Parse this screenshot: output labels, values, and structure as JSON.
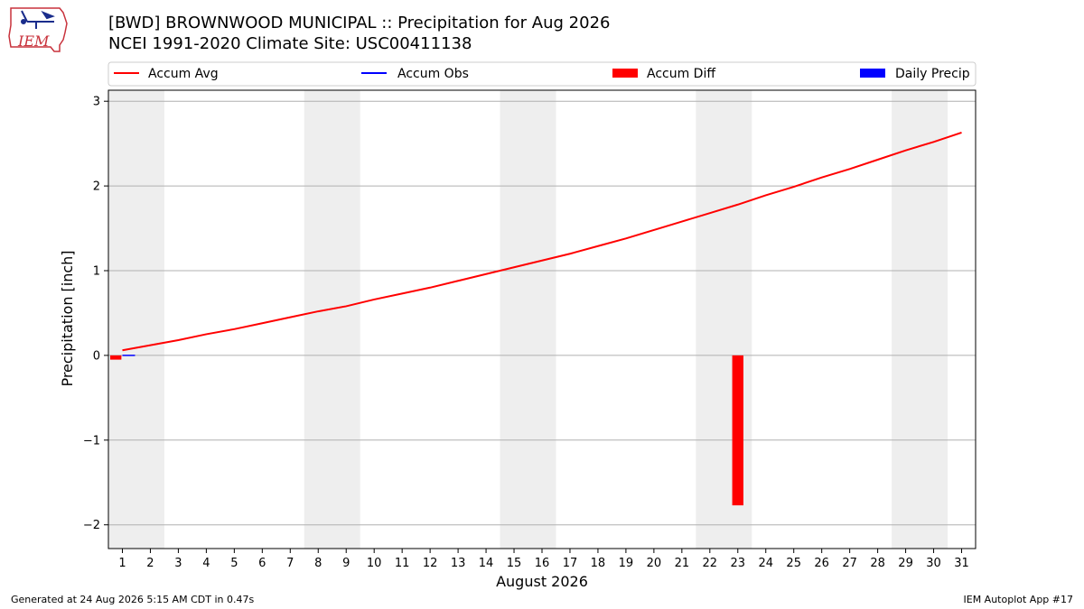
{
  "header": {
    "title_line1": "[BWD] BROWNWOOD MUNICIPAL :: Precipitation for Aug 2026",
    "title_line2": "NCEI 1991-2020 Climate Site: USC00411138"
  },
  "logo": {
    "text": "IEM"
  },
  "legend": {
    "placement": "top",
    "items": [
      {
        "label": "Accum Avg",
        "kind": "line",
        "color": "#ff0000"
      },
      {
        "label": "Accum Obs",
        "kind": "line",
        "color": "#0000ff"
      },
      {
        "label": "Accum Diff",
        "kind": "bar",
        "color": "#ff0000"
      },
      {
        "label": "Daily Precip",
        "kind": "bar",
        "color": "#0000ff"
      }
    ]
  },
  "footer": {
    "left": "Generated at 24 Aug 2026 5:15 AM CDT in 0.47s",
    "right": "IEM Autoplot App #17"
  },
  "chart_data": {
    "type": "line",
    "xlabel": "August 2026",
    "ylabel": "Precipitation [inch]",
    "xlim": [
      0.5,
      31.5
    ],
    "ylim": [
      -2.28,
      3.13
    ],
    "x_ticks": [
      1,
      2,
      3,
      4,
      5,
      6,
      7,
      8,
      9,
      10,
      11,
      12,
      13,
      14,
      15,
      16,
      17,
      18,
      19,
      20,
      21,
      22,
      23,
      24,
      25,
      26,
      27,
      28,
      29,
      30,
      31
    ],
    "y_ticks": [
      3,
      2,
      1,
      0,
      -1,
      -2
    ],
    "y_tick_labels": [
      "3",
      "2",
      "1",
      "0",
      "−1",
      "−2"
    ],
    "grid": "horizontal",
    "weekend_shading": [
      [
        0.5,
        2.5
      ],
      [
        7.5,
        9.5
      ],
      [
        14.5,
        16.5
      ],
      [
        21.5,
        23.5
      ],
      [
        28.5,
        30.5
      ]
    ],
    "weekend_color": "#eeeeee",
    "series": [
      {
        "name": "Accum Avg",
        "kind": "line",
        "color": "#ff0000",
        "x": [
          1,
          2,
          3,
          4,
          5,
          6,
          7,
          8,
          9,
          10,
          11,
          12,
          13,
          14,
          15,
          16,
          17,
          18,
          19,
          20,
          21,
          22,
          23,
          24,
          25,
          26,
          27,
          28,
          29,
          30,
          31
        ],
        "values": [
          0.06,
          0.12,
          0.18,
          0.25,
          0.31,
          0.38,
          0.45,
          0.52,
          0.58,
          0.66,
          0.73,
          0.8,
          0.88,
          0.96,
          1.04,
          1.12,
          1.2,
          1.29,
          1.38,
          1.48,
          1.58,
          1.68,
          1.78,
          1.89,
          1.99,
          2.1,
          2.2,
          2.31,
          2.42,
          2.52,
          2.63
        ]
      },
      {
        "name": "Accum Obs",
        "kind": "line",
        "color": "#0000ff",
        "x": [
          1
        ],
        "values": [
          0.0
        ]
      },
      {
        "name": "Accum Diff",
        "kind": "bar",
        "color": "#ff0000",
        "x": [
          1,
          23
        ],
        "values": [
          -0.05,
          -1.77
        ]
      },
      {
        "name": "Daily Precip",
        "kind": "bar",
        "color": "#0000ff",
        "x": [],
        "values": []
      }
    ]
  }
}
